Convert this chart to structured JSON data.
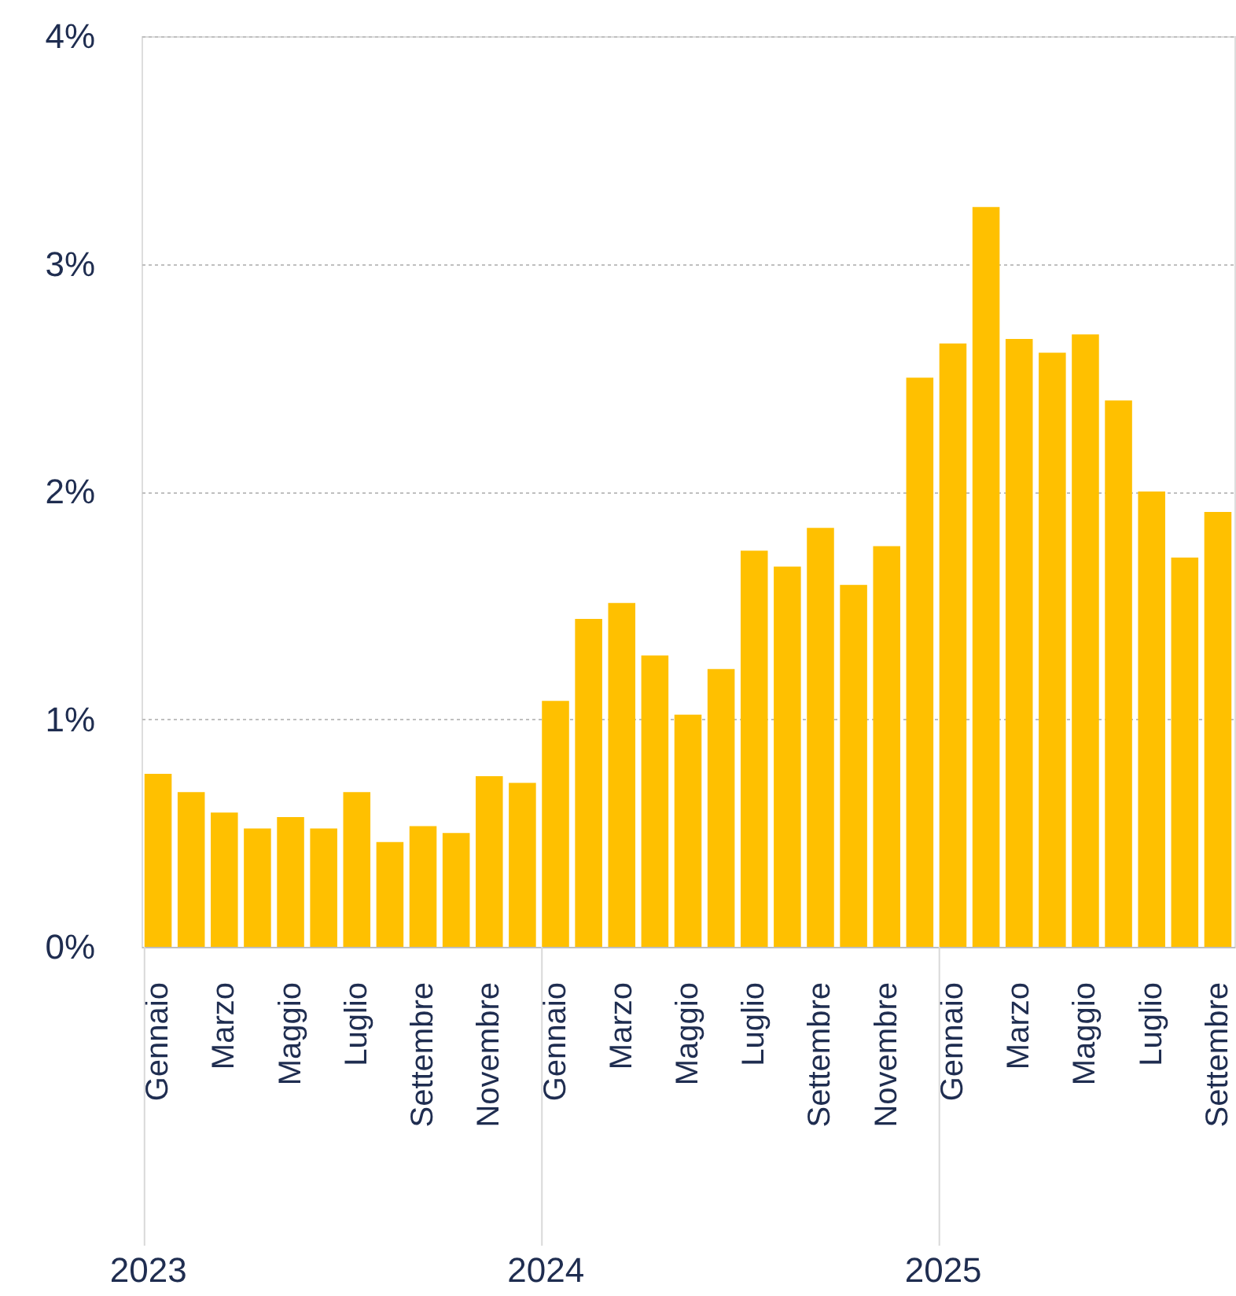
{
  "chart_data": {
    "type": "bar",
    "categories": [
      "Gennaio",
      null,
      "Marzo",
      null,
      "Maggio",
      null,
      "Luglio",
      null,
      "Settembre",
      null,
      "Novembre",
      null,
      "Gennaio",
      null,
      "Marzo",
      null,
      "Maggio",
      null,
      "Luglio",
      null,
      "Settembre",
      null,
      "Novembre",
      null,
      "Gennaio",
      null,
      "Marzo",
      null,
      "Maggio",
      null,
      "Luglio",
      null,
      "Settembre"
    ],
    "values": [
      0.76,
      0.68,
      0.59,
      0.52,
      0.57,
      0.52,
      0.68,
      0.46,
      0.53,
      0.5,
      0.75,
      0.72,
      1.08,
      1.44,
      1.51,
      1.28,
      1.02,
      1.22,
      1.74,
      1.67,
      1.84,
      1.59,
      1.76,
      2.5,
      2.65,
      3.25,
      2.67,
      2.61,
      2.69,
      2.4,
      2.0,
      1.71,
      1.91
    ],
    "color": "#ffc000",
    "ylim": [
      0,
      4
    ],
    "yticks": [
      {
        "value": 0,
        "label": "0%"
      },
      {
        "value": 1,
        "label": "1%"
      },
      {
        "value": 2,
        "label": "2%"
      },
      {
        "value": 3,
        "label": "3%"
      },
      {
        "value": 4,
        "label": "4%"
      }
    ],
    "grid": "y",
    "annotations": [
      "2023",
      "2024",
      "2025"
    ]
  }
}
